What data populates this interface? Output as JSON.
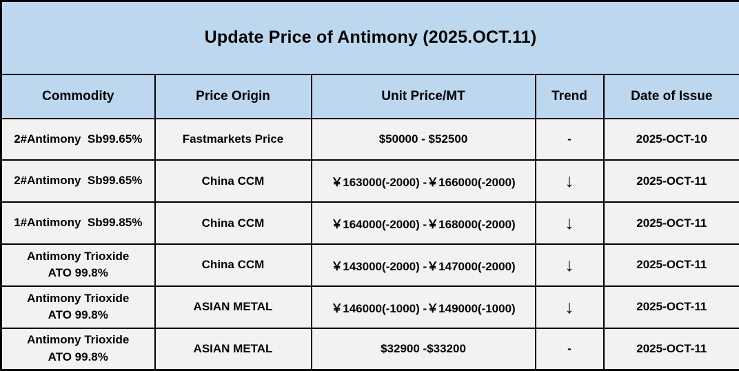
{
  "title": "Update Price of Antimony (2025.OCT.11)",
  "table": {
    "columns": [
      "Commodity",
      "Price Origin",
      "Unit Price/MT",
      "Trend",
      "Date of Issue"
    ],
    "rows": [
      {
        "commodity": "2#Antimony  Sb99.65%",
        "origin": "Fastmarkets Price",
        "unit_price": "$50000 - $52500",
        "trend": "-",
        "date": "2025-OCT-10"
      },
      {
        "commodity": "2#Antimony  Sb99.65%",
        "origin": "China CCM",
        "unit_price": "￥163000(-2000) -￥166000(-2000)",
        "trend": "↓",
        "date": "2025-OCT-11"
      },
      {
        "commodity": "1#Antimony  Sb99.85%",
        "origin": "China CCM",
        "unit_price": "￥164000(-2000) -￥168000(-2000)",
        "trend": "↓",
        "date": "2025-OCT-11"
      },
      {
        "commodity": "Antimony Trioxide\nATO 99.8%",
        "origin": "China CCM",
        "unit_price": "￥143000(-2000) -￥147000(-2000)",
        "trend": "↓",
        "date": "2025-OCT-11"
      },
      {
        "commodity": "Antimony Trioxide\nATO 99.8%",
        "origin": "ASIAN METAL",
        "unit_price": "￥146000(-1000) -￥149000(-1000)",
        "trend": "↓",
        "date": "2025-OCT-11"
      },
      {
        "commodity": "Antimony Trioxide\nATO 99.8%",
        "origin": "ASIAN METAL",
        "unit_price": "$32900 -$33200",
        "trend": "-",
        "date": "2025-OCT-11"
      }
    ]
  },
  "icons": {
    "trend_down": "down-arrow-icon",
    "trend_flat": "dash-icon"
  },
  "colors": {
    "header_bg": "#BDD7EE",
    "row_bg": "#F2F2F2",
    "border": "#000000",
    "text": "#000000"
  }
}
